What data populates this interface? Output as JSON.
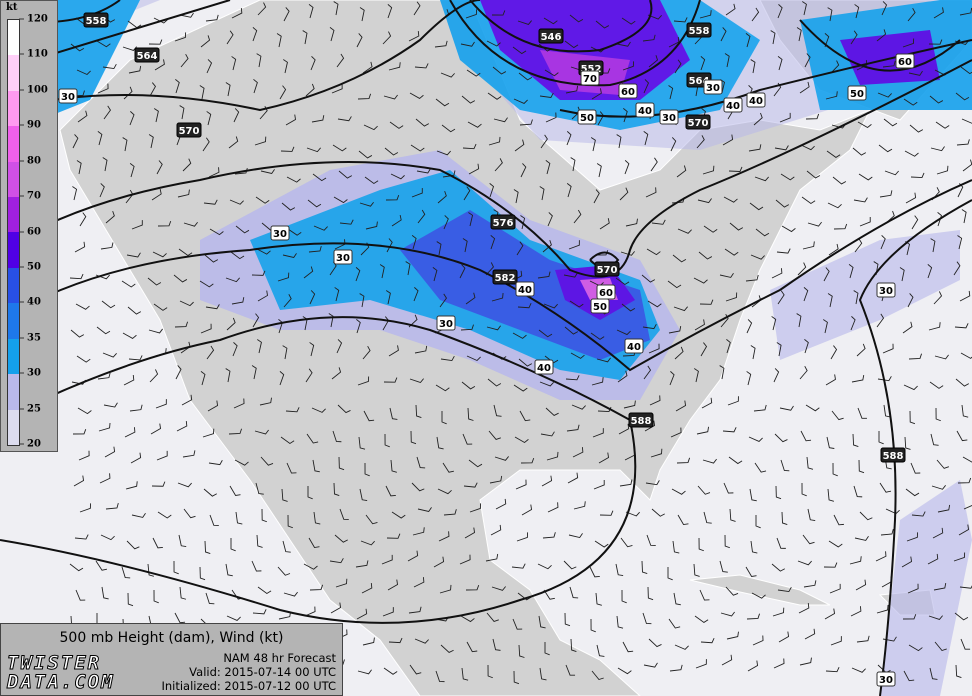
{
  "legend": {
    "unit": "kt",
    "ticks": [
      "20",
      "25",
      "30",
      "35",
      "40",
      "50",
      "60",
      "70",
      "80",
      "90",
      "100",
      "110",
      "120"
    ],
    "colors": [
      "#dcdcee",
      "#b9b9ea",
      "#14a0ec",
      "#1e78ea",
      "#2850e6",
      "#5000e6",
      "#a020e0",
      "#d050e6",
      "#f060ea",
      "#ff9af0",
      "#ffd0f8",
      "#ffffff"
    ]
  },
  "info": {
    "title": "500 mb Height (dam), Wind (kt)",
    "model": "NAM 48 hr Forecast",
    "valid": "Valid: 2015-07-14 00 UTC",
    "initialized": "Initialized: 2015-07-12 00 UTC",
    "logo_line1": "TWISTER",
    "logo_line2": "DATA.COM"
  },
  "map": {
    "land_color": "#d2d2d2",
    "ocean_color": "#efeff3",
    "height_labels": [
      {
        "text": "558"
      },
      {
        "text": "564"
      },
      {
        "text": "570"
      },
      {
        "text": "576"
      },
      {
        "text": "582"
      },
      {
        "text": "588"
      },
      {
        "text": "588"
      },
      {
        "text": "546"
      },
      {
        "text": "552"
      },
      {
        "text": "558"
      },
      {
        "text": "564"
      },
      {
        "text": "570"
      },
      {
        "text": "570"
      }
    ],
    "speed_labels": [
      {
        "text": "30"
      },
      {
        "text": "30"
      },
      {
        "text": "30"
      },
      {
        "text": "30"
      },
      {
        "text": "40"
      },
      {
        "text": "40"
      },
      {
        "text": "40"
      },
      {
        "text": "50"
      },
      {
        "text": "60"
      },
      {
        "text": "60"
      },
      {
        "text": "70"
      },
      {
        "text": "50"
      },
      {
        "text": "40"
      },
      {
        "text": "30"
      },
      {
        "text": "40"
      },
      {
        "text": "40"
      },
      {
        "text": "50"
      },
      {
        "text": "60"
      },
      {
        "text": "30"
      },
      {
        "text": "30"
      },
      {
        "text": "30"
      }
    ]
  }
}
